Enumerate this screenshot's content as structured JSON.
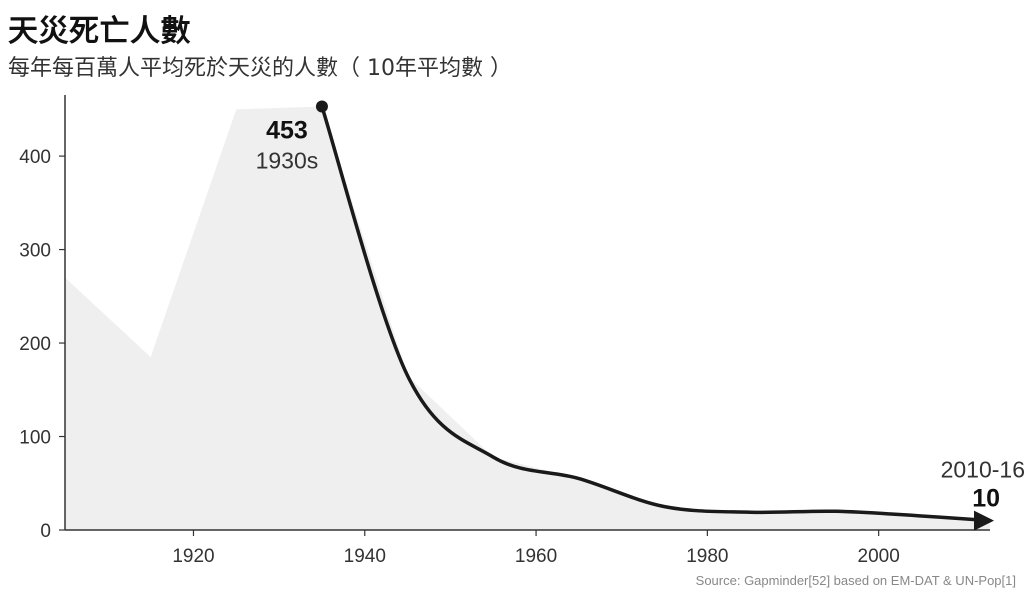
{
  "header": {
    "title": "天災死亡人數",
    "subtitle": "每年每百萬人平均死於天災的人數（ 10年平均數 ）"
  },
  "source": "Source: Gapminder[52] based on EM-DAT & UN-Pop[1]",
  "colors": {
    "area": "#efefef",
    "line": "#1a1a1a",
    "axis": "#333333"
  },
  "chart_data": {
    "type": "line",
    "title": "天災死亡人數",
    "subtitle": "每年每百萬人平均死於天災的人數（ 10年平均數 ）",
    "xlabel": "",
    "ylabel": "",
    "xlim": [
      1905,
      2013
    ],
    "ylim": [
      0,
      460
    ],
    "x_ticks": [
      1920,
      1940,
      1960,
      1980,
      2000
    ],
    "y_ticks": [
      0,
      100,
      200,
      300,
      400
    ],
    "grid": false,
    "legend": "none",
    "series": [
      {
        "name": "",
        "style": "area",
        "x": [
          1905,
          1915,
          1925,
          1935,
          1945,
          1955,
          1965,
          1975,
          1985,
          1995,
          2005,
          2013
        ],
        "y": [
          270,
          185,
          450,
          453,
          165,
          78,
          55,
          25,
          19,
          20,
          15,
          10
        ]
      },
      {
        "name": "",
        "style": "line",
        "x": [
          1935,
          1945,
          1955,
          1965,
          1975,
          1985,
          1995,
          2005,
          2013
        ],
        "y": [
          453,
          165,
          78,
          55,
          25,
          19,
          20,
          15,
          10
        ]
      }
    ],
    "annotations": [
      {
        "value": "453",
        "label": "1930s",
        "x": 1935,
        "y": 453
      },
      {
        "value": "10",
        "label": "2010-16",
        "x": 2013,
        "y": 10
      }
    ]
  }
}
